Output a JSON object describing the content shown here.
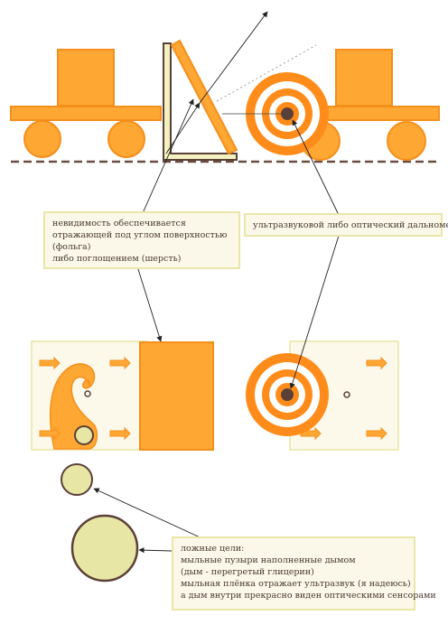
{
  "notes": {
    "invisibility": {
      "lines": [
        "невидимость обеспечивается",
        "отражающей под углом поверхностью",
        "(фольга)",
        "либо поглощением (шерсть)"
      ]
    },
    "rangefinder": {
      "lines": [
        "ультразвуковой либо оптический дальномер"
      ]
    },
    "decoys": {
      "lines": [
        "ложные цели:",
        "мыльные пузыри наполненные дымом",
        "(дым - перегретый глицерин)",
        "мыльная плёнка отражает ультразвук (я надеюсь)",
        "а дым внутри прекрасно виден оптическими сенсорами"
      ]
    }
  },
  "colors": {
    "orange": "#ffa733",
    "orange_stroke": "#f58f1c",
    "dark": "#5b4037",
    "pale_yellow": "#e7e6a4",
    "panel_bg": "#fcf9ea"
  }
}
